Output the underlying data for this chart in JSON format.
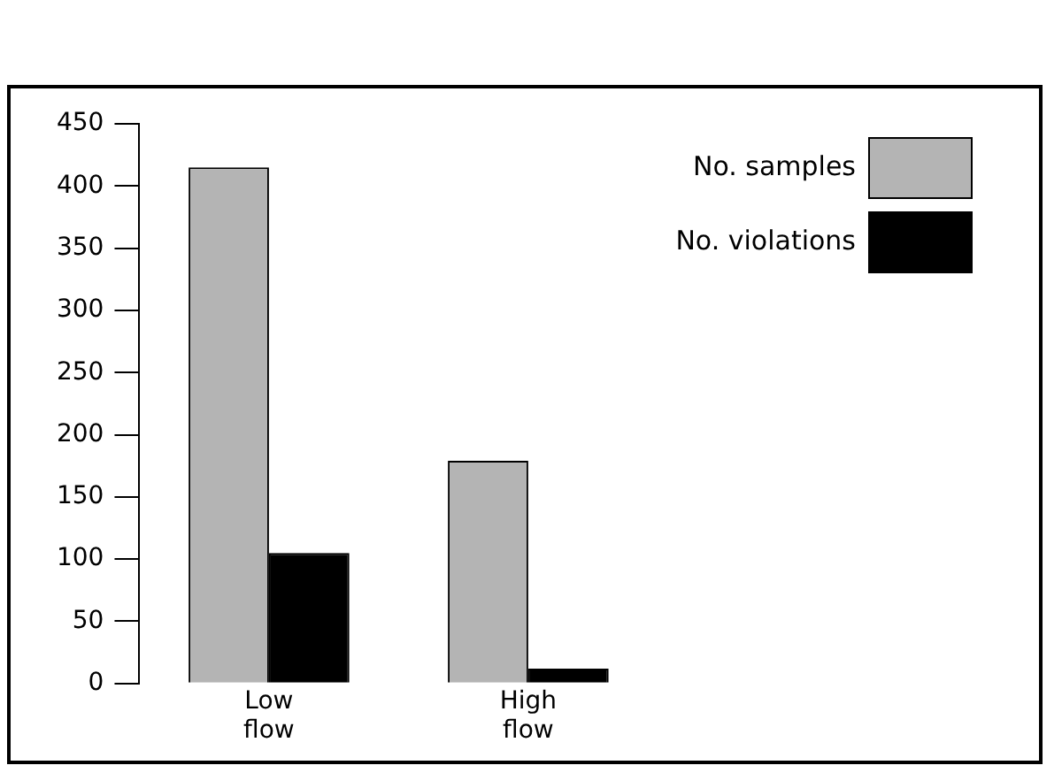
{
  "chart_data": {
    "type": "bar",
    "categories": [
      "Low flow",
      "High flow"
    ],
    "series": [
      {
        "name": "No. samples",
        "color": "#b4b4b4",
        "values": [
          415,
          179
        ]
      },
      {
        "name": "No. violations",
        "color": "#000000",
        "values": [
          105,
          12
        ]
      }
    ],
    "ylim": [
      0,
      450
    ],
    "yticks": [
      0,
      50,
      100,
      150,
      200,
      250,
      300,
      350,
      400,
      450
    ],
    "grid": false,
    "legend": "top right"
  }
}
